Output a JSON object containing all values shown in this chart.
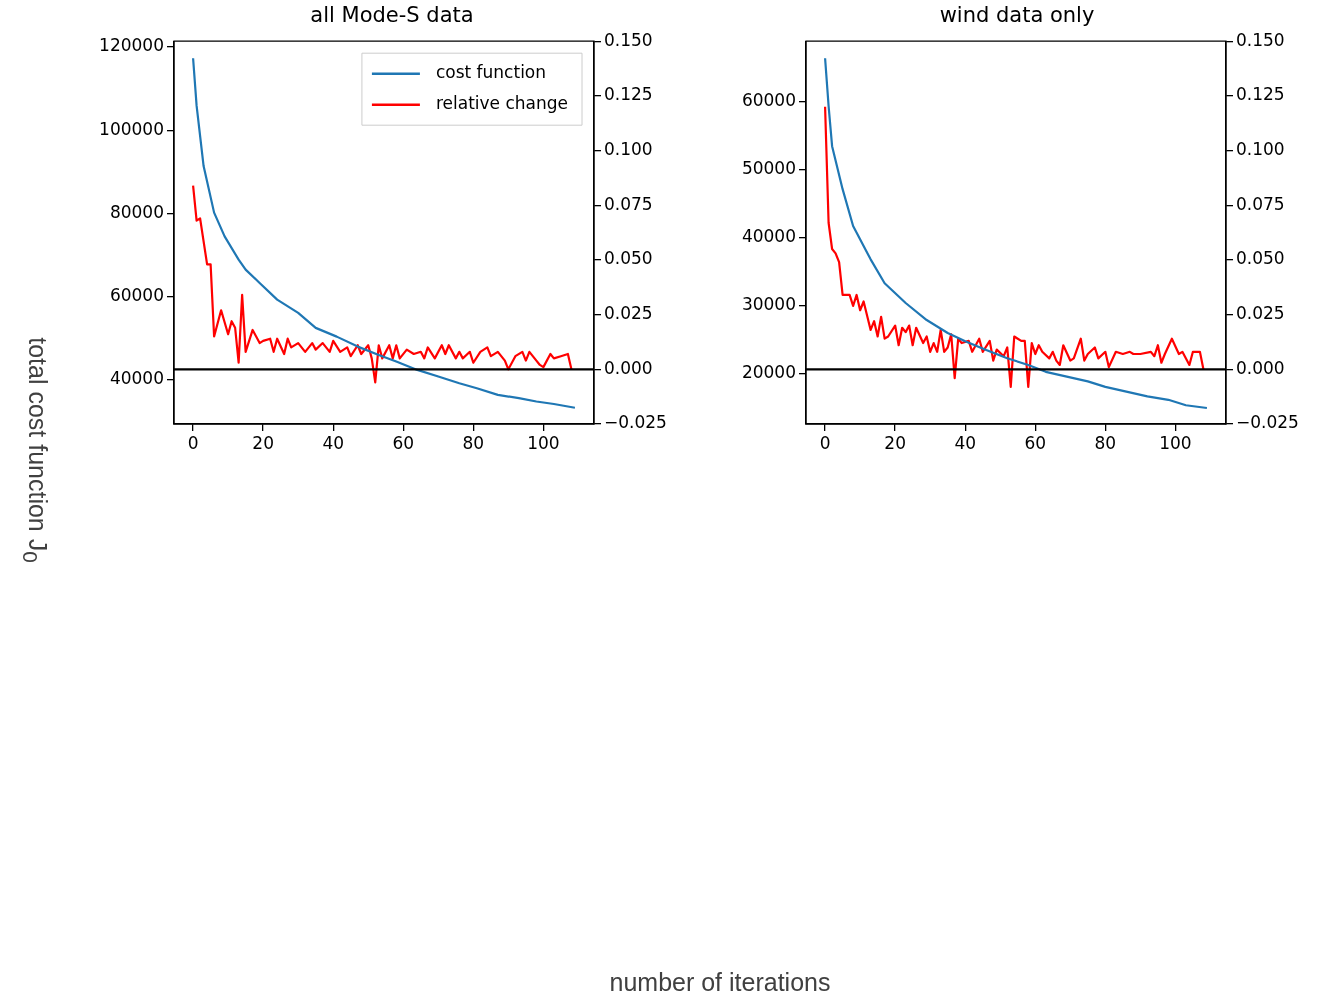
{
  "chart_data": [
    {
      "type": "line",
      "title": "all Mode-S data",
      "ylabel": "total cost function J$_{0}$",
      "xlabel": "number of iterations",
      "legend": "top right",
      "grid": false,
      "xlim": [
        -5.45,
        114.45
      ],
      "xticks": [
        0,
        20,
        40,
        60,
        80,
        100
      ],
      "ylim": [
        29400,
        121400
      ],
      "yticks": [
        40000,
        60000,
        80000,
        100000,
        120000
      ],
      "y2lim": [
        -0.025,
        0.15
      ],
      "y2ticks": [
        {
          "value": -0.025,
          "label": "−0.025"
        },
        {
          "value": 0,
          "label": "0.000"
        },
        {
          "value": 0.025,
          "label": "0.025"
        },
        {
          "value": 0.05,
          "label": "0.050"
        },
        {
          "value": 0.075,
          "label": "0.075"
        },
        {
          "value": 0.1,
          "label": "0.100"
        },
        {
          "value": 0.125,
          "label": "0.125"
        },
        {
          "value": 0.15,
          "label": "0.150"
        }
      ],
      "ref_lines": [
        {
          "axis": "y2",
          "value": 0,
          "color": "#000000"
        }
      ],
      "series": [
        {
          "name": "cost function",
          "color": "#1f77b4",
          "x": [
            0,
            1,
            3,
            6,
            9,
            13,
            15,
            19,
            24,
            30,
            35,
            41,
            47,
            53,
            58,
            64,
            70,
            76,
            81,
            87,
            93,
            98,
            103,
            109
          ],
          "values": [
            117300,
            105900,
            91400,
            80200,
            74500,
            68900,
            66500,
            63300,
            59300,
            56100,
            52500,
            50400,
            48000,
            46000,
            44400,
            42400,
            40800,
            39200,
            38000,
            36400,
            35600,
            34800,
            34200,
            33300
          ]
        },
        {
          "name": "relative change",
          "color": "#ff0000",
          "axis": "y2",
          "x": [
            0,
            1,
            2,
            4,
            5,
            6,
            8,
            10,
            11,
            12,
            13,
            14,
            15,
            17,
            19,
            20,
            22,
            23,
            24,
            26,
            27,
            28,
            30,
            32,
            34,
            35,
            37,
            39,
            40,
            42,
            44,
            45,
            47,
            48,
            50,
            51,
            52,
            53,
            54,
            56,
            57,
            58,
            59,
            61,
            63,
            65,
            66,
            67,
            69,
            71,
            72,
            73,
            75,
            76,
            77,
            79,
            80,
            82,
            84,
            85,
            87,
            89,
            90,
            92,
            94,
            95,
            96,
            98,
            99,
            100,
            102,
            103,
            105,
            107,
            108
          ],
          "values": [
            0.084,
            0.068,
            0.069,
            0.048,
            0.048,
            0.015,
            0.027,
            0.016,
            0.022,
            0.019,
            0.003,
            0.034,
            0.008,
            0.018,
            0.012,
            0.013,
            0.014,
            0.008,
            0.014,
            0.007,
            0.014,
            0.01,
            0.012,
            0.008,
            0.012,
            0.009,
            0.012,
            0.008,
            0.013,
            0.008,
            0.01,
            0.006,
            0.011,
            0.007,
            0.011,
            0.005,
            -0.006,
            0.011,
            0.005,
            0.011,
            0.005,
            0.011,
            0.005,
            0.009,
            0.007,
            0.008,
            0.005,
            0.01,
            0.005,
            0.011,
            0.007,
            0.011,
            0.005,
            0.008,
            0.005,
            0.008,
            0.003,
            0.008,
            0.01,
            0.006,
            0.008,
            0.004,
            0,
            0.006,
            0.008,
            0.004,
            0.008,
            0.004,
            0.002,
            0.001,
            0.007,
            0.005,
            0.006,
            0.007,
            0
          ]
        }
      ]
    },
    {
      "type": "line",
      "title": "wind data only",
      "grid": false,
      "xlim": [
        -5.45,
        114.45
      ],
      "xticks": [
        0,
        20,
        40,
        60,
        80,
        100
      ],
      "ylim": [
        12650,
        68800
      ],
      "yticks": [
        20000,
        30000,
        40000,
        50000,
        60000
      ],
      "y2lim": [
        -0.025,
        0.15
      ],
      "y2ticks": [
        {
          "value": -0.025,
          "label": "−0.025"
        },
        {
          "value": 0,
          "label": "0.000"
        },
        {
          "value": 0.025,
          "label": "0.025"
        },
        {
          "value": 0.05,
          "label": "0.050"
        },
        {
          "value": 0.075,
          "label": "0.075"
        },
        {
          "value": 0.1,
          "label": "0.100"
        },
        {
          "value": 0.125,
          "label": "0.125"
        },
        {
          "value": 0.15,
          "label": "0.150"
        }
      ],
      "ref_lines": [
        {
          "axis": "y2",
          "value": 0,
          "color": "#000000"
        }
      ],
      "series": [
        {
          "color": "#1f77b4",
          "x": [
            0,
            1,
            2,
            5,
            8,
            13,
            17,
            23,
            29,
            35,
            40,
            46,
            52,
            58,
            63,
            69,
            75,
            80,
            86,
            92,
            98,
            103,
            109
          ],
          "values": [
            66300,
            59300,
            53400,
            47100,
            41700,
            36800,
            33300,
            30400,
            27900,
            26000,
            24800,
            23500,
            22300,
            21300,
            20300,
            19600,
            18900,
            18100,
            17400,
            16700,
            16200,
            15400,
            15000
          ]
        },
        {
          "color": "#ff0000",
          "axis": "y2",
          "x": [
            0,
            1,
            2,
            3,
            4,
            5,
            6,
            7,
            8,
            9,
            10,
            11,
            13,
            14,
            15,
            16,
            17,
            18,
            20,
            21,
            22,
            23,
            24,
            25,
            26,
            28,
            29,
            30,
            31,
            32,
            33,
            34,
            35,
            36,
            37,
            38,
            39,
            41,
            42,
            44,
            45,
            47,
            48,
            49,
            51,
            52,
            53,
            54,
            56,
            57,
            58,
            59,
            60,
            61,
            62,
            64,
            65,
            66,
            67,
            68,
            70,
            71,
            73,
            74,
            75,
            77,
            78,
            80,
            81,
            83,
            85,
            87,
            88,
            90,
            93,
            94,
            95,
            96,
            97,
            99,
            101,
            102,
            104,
            105,
            107,
            108
          ],
          "values": [
            0.12,
            0.067,
            0.055,
            0.053,
            0.049,
            0.034,
            0.034,
            0.034,
            0.029,
            0.034,
            0.027,
            0.031,
            0.018,
            0.022,
            0.015,
            0.024,
            0.014,
            0.015,
            0.02,
            0.011,
            0.019,
            0.017,
            0.02,
            0.011,
            0.019,
            0.012,
            0.015,
            0.008,
            0.012,
            0.008,
            0.018,
            0.008,
            0.01,
            0.016,
            -0.004,
            0.014,
            0.012,
            0.013,
            0.008,
            0.014,
            0.008,
            0.013,
            0.004,
            0.009,
            0.006,
            0.01,
            -0.008,
            0.015,
            0.013,
            0.013,
            -0.008,
            0.012,
            0.007,
            0.011,
            0.008,
            0.005,
            0.008,
            0.004,
            0.002,
            0.011,
            0.004,
            0.005,
            0.014,
            0.004,
            0.007,
            0.01,
            0.005,
            0.008,
            0.001,
            0.008,
            0.007,
            0.008,
            0.007,
            0.007,
            0.008,
            0.006,
            0.011,
            0.003,
            0.007,
            0.014,
            0.007,
            0.008,
            0.002,
            0.008,
            0.008,
            0
          ]
        }
      ]
    }
  ]
}
